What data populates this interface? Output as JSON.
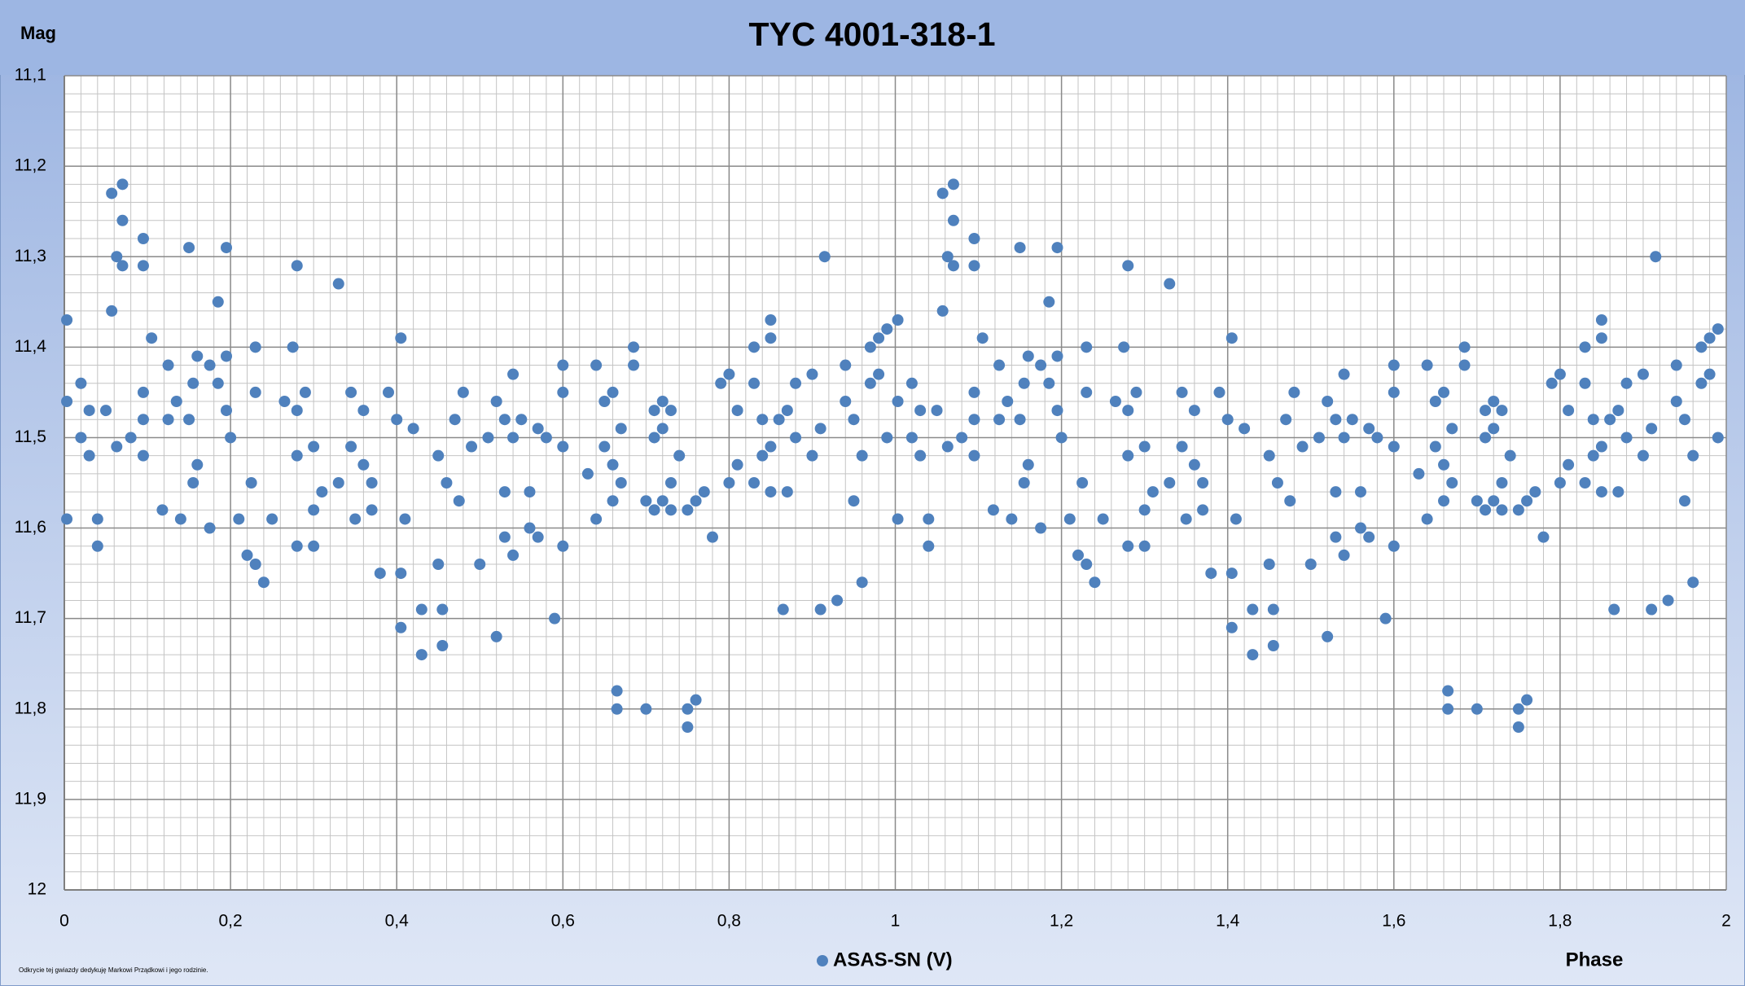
{
  "chart_data": {
    "type": "scatter",
    "title": "TYC 4001-318-1",
    "y_label": "Mag",
    "x_label": "Phase",
    "note": "Odkrycie tej gwiazdy dedykuję Markowi Prządkowi i jego rodzinie.",
    "xlim": [
      0,
      2
    ],
    "ylim": [
      11.1,
      12
    ],
    "y_inverted": true,
    "grid": true,
    "minor_grid": {
      "x": 0.02,
      "y": 0.02
    },
    "xticks": [
      0,
      {
        "value": 0.2,
        "label": "0,2"
      },
      {
        "value": 0.4,
        "label": "0,4"
      },
      {
        "value": 0.6,
        "label": "0,6"
      },
      {
        "value": 0.8,
        "label": "0,8"
      },
      1,
      {
        "value": 1.2,
        "label": "1,2"
      },
      {
        "value": 1.4,
        "label": "1,4"
      },
      {
        "value": 1.6,
        "label": "1,6"
      },
      {
        "value": 1.8,
        "label": "1,8"
      },
      2
    ],
    "yticks": [
      {
        "value": 11.1,
        "label": "11,1"
      },
      {
        "value": 11.2,
        "label": "11,2"
      },
      {
        "value": 11.3,
        "label": "11,3"
      },
      {
        "value": 11.4,
        "label": "11,4"
      },
      {
        "value": 11.5,
        "label": "11,5"
      },
      {
        "value": 11.6,
        "label": "11,6"
      },
      {
        "value": 11.7,
        "label": "11,7"
      },
      {
        "value": 11.8,
        "label": "11,8"
      },
      {
        "value": 11.9,
        "label": "11,9"
      },
      12
    ],
    "legend": "bottom",
    "series": [
      {
        "name": "ASAS-SN (V)",
        "color": "#4f81bd",
        "x": [
          0.003,
          0.003,
          0.003,
          0.02,
          0.02,
          0.03,
          0.03,
          0.04,
          0.04,
          0.05,
          0.057,
          0.057,
          0.063,
          0.063,
          0.07,
          0.07,
          0.07,
          0.08,
          0.095,
          0.095,
          0.095,
          0.095,
          0.095,
          0.105,
          0.118,
          0.125,
          0.125,
          0.135,
          0.14,
          0.15,
          0.15,
          0.155,
          0.155,
          0.16,
          0.16,
          0.175,
          0.175,
          0.185,
          0.185,
          0.195,
          0.195,
          0.195,
          0.2,
          0.21,
          0.22,
          0.225,
          0.23,
          0.23,
          0.23,
          0.24,
          0.25,
          0.265,
          0.275,
          0.28,
          0.28,
          0.28,
          0.28,
          0.29,
          0.3,
          0.3,
          0.3,
          0.31,
          0.33,
          0.33,
          0.345,
          0.345,
          0.35,
          0.36,
          0.36,
          0.37,
          0.37,
          0.38,
          0.39,
          0.4,
          0.405,
          0.405,
          0.405,
          0.41,
          0.42,
          0.43,
          0.43,
          0.45,
          0.45,
          0.455,
          0.455,
          0.46,
          0.47,
          0.475,
          0.48,
          0.49,
          0.5,
          0.51,
          0.52,
          0.52,
          0.53,
          0.53,
          0.53,
          0.54,
          0.54,
          0.54,
          0.55,
          0.56,
          0.56,
          0.57,
          0.57,
          0.58,
          0.59,
          0.6,
          0.6,
          0.6,
          0.6,
          0.63,
          0.64,
          0.64,
          0.65,
          0.65,
          0.66,
          0.66,
          0.66,
          0.665,
          0.665,
          0.67,
          0.67,
          0.685,
          0.685,
          0.7,
          0.7,
          0.71,
          0.71,
          0.71,
          0.72,
          0.72,
          0.72,
          0.73,
          0.73,
          0.73,
          0.74,
          0.75,
          0.75,
          0.75,
          0.76,
          0.76,
          0.77,
          0.78,
          0.79,
          0.8,
          0.8,
          0.81,
          0.81,
          0.83,
          0.83,
          0.83,
          0.84,
          0.84,
          0.85,
          0.85,
          0.85,
          0.85,
          0.86,
          0.865,
          0.87,
          0.87,
          0.88,
          0.88,
          0.9,
          0.9,
          0.91,
          0.91,
          0.915,
          0.93,
          0.94,
          0.94,
          0.95,
          0.95,
          0.96,
          0.96,
          0.97,
          0.97,
          0.98,
          0.98,
          0.99,
          0.99,
          1.003,
          1.003,
          1.003,
          1.02,
          1.02,
          1.03,
          1.03,
          1.04,
          1.04,
          1.05,
          1.057,
          1.057,
          1.063,
          1.063,
          1.07,
          1.07,
          1.07,
          1.08,
          1.095,
          1.095,
          1.095,
          1.095,
          1.095,
          1.105,
          1.118,
          1.125,
          1.125,
          1.135,
          1.14,
          1.15,
          1.15,
          1.155,
          1.155,
          1.16,
          1.16,
          1.175,
          1.175,
          1.185,
          1.185,
          1.195,
          1.195,
          1.195,
          1.2,
          1.21,
          1.22,
          1.225,
          1.23,
          1.23,
          1.23,
          1.24,
          1.25,
          1.265,
          1.275,
          1.28,
          1.28,
          1.28,
          1.28,
          1.29,
          1.3,
          1.3,
          1.3,
          1.31,
          1.33,
          1.33,
          1.345,
          1.345,
          1.35,
          1.36,
          1.36,
          1.37,
          1.37,
          1.38,
          1.39,
          1.4,
          1.405,
          1.405,
          1.405,
          1.41,
          1.42,
          1.43,
          1.43,
          1.45,
          1.45,
          1.455,
          1.455,
          1.46,
          1.47,
          1.475,
          1.48,
          1.49,
          1.5,
          1.51,
          1.52,
          1.52,
          1.53,
          1.53,
          1.53,
          1.54,
          1.54,
          1.54,
          1.55,
          1.56,
          1.56,
          1.57,
          1.57,
          1.58,
          1.59,
          1.6,
          1.6,
          1.6,
          1.6,
          1.63,
          1.64,
          1.64,
          1.65,
          1.65,
          1.66,
          1.66,
          1.66,
          1.665,
          1.665,
          1.67,
          1.67,
          1.685,
          1.685,
          1.7,
          1.7,
          1.71,
          1.71,
          1.71,
          1.72,
          1.72,
          1.72,
          1.73,
          1.73,
          1.73,
          1.74,
          1.75,
          1.75,
          1.75,
          1.76,
          1.76,
          1.77,
          1.78,
          1.79,
          1.8,
          1.8,
          1.81,
          1.81,
          1.83,
          1.83,
          1.83,
          1.84,
          1.84,
          1.85,
          1.85,
          1.85,
          1.85,
          1.86,
          1.865,
          1.87,
          1.87,
          1.88,
          1.88,
          1.9,
          1.9,
          1.91,
          1.91,
          1.915,
          1.93,
          1.94,
          1.94,
          1.95,
          1.95,
          1.96,
          1.96,
          1.97,
          1.97,
          1.98,
          1.98,
          1.99,
          1.99
        ],
        "values": [
          11.37,
          11.46,
          11.59,
          11.44,
          11.5,
          11.52,
          11.47,
          11.59,
          11.62,
          11.47,
          11.23,
          11.36,
          11.3,
          11.51,
          11.22,
          11.26,
          11.31,
          11.5,
          11.28,
          11.31,
          11.45,
          11.48,
          11.52,
          11.39,
          11.58,
          11.42,
          11.48,
          11.46,
          11.59,
          11.29,
          11.48,
          11.44,
          11.55,
          11.41,
          11.53,
          11.42,
          11.6,
          11.35,
          11.44,
          11.29,
          11.41,
          11.47,
          11.5,
          11.59,
          11.63,
          11.55,
          11.4,
          11.45,
          11.64,
          11.66,
          11.59,
          11.46,
          11.4,
          11.31,
          11.47,
          11.52,
          11.62,
          11.45,
          11.51,
          11.58,
          11.62,
          11.56,
          11.33,
          11.55,
          11.45,
          11.51,
          11.59,
          11.47,
          11.53,
          11.55,
          11.58,
          11.65,
          11.45,
          11.48,
          11.39,
          11.65,
          11.71,
          11.59,
          11.49,
          11.69,
          11.74,
          11.52,
          11.64,
          11.69,
          11.73,
          11.55,
          11.48,
          11.57,
          11.45,
          11.51,
          11.64,
          11.5,
          11.72,
          11.46,
          11.48,
          11.56,
          11.61,
          11.43,
          11.5,
          11.63,
          11.48,
          11.56,
          11.6,
          11.49,
          11.61,
          11.5,
          11.7,
          11.42,
          11.45,
          11.51,
          11.62,
          11.54,
          11.42,
          11.59,
          11.46,
          11.51,
          11.45,
          11.53,
          11.57,
          11.78,
          11.8,
          11.49,
          11.55,
          11.4,
          11.42,
          11.57,
          11.8,
          11.47,
          11.5,
          11.58,
          11.46,
          11.49,
          11.57,
          11.47,
          11.55,
          11.58,
          11.52,
          11.58,
          11.8,
          11.82,
          11.57,
          11.79,
          11.56,
          11.61,
          11.44,
          11.43,
          11.55,
          11.47,
          11.53,
          11.4,
          11.44,
          11.55,
          11.48,
          11.52,
          11.37,
          11.39,
          11.51,
          11.56,
          11.48,
          11.69,
          11.47,
          11.56,
          11.44,
          11.5,
          11.43,
          11.52,
          11.49,
          11.69,
          11.3,
          11.68,
          11.42,
          11.46,
          11.48,
          11.57,
          11.52,
          11.66,
          11.4,
          11.44,
          11.39,
          11.43,
          11.38,
          11.5,
          11.37,
          11.46,
          11.59,
          11.44,
          11.5,
          11.52,
          11.47,
          11.59,
          11.62,
          11.47,
          11.23,
          11.36,
          11.3,
          11.51,
          11.22,
          11.26,
          11.31,
          11.5,
          11.28,
          11.31,
          11.45,
          11.48,
          11.52,
          11.39,
          11.58,
          11.42,
          11.48,
          11.46,
          11.59,
          11.29,
          11.48,
          11.44,
          11.55,
          11.41,
          11.53,
          11.42,
          11.6,
          11.35,
          11.44,
          11.29,
          11.41,
          11.47,
          11.5,
          11.59,
          11.63,
          11.55,
          11.4,
          11.45,
          11.64,
          11.66,
          11.59,
          11.46,
          11.4,
          11.31,
          11.47,
          11.52,
          11.62,
          11.45,
          11.51,
          11.58,
          11.62,
          11.56,
          11.33,
          11.55,
          11.45,
          11.51,
          11.59,
          11.47,
          11.53,
          11.55,
          11.58,
          11.65,
          11.45,
          11.48,
          11.39,
          11.65,
          11.71,
          11.59,
          11.49,
          11.69,
          11.74,
          11.52,
          11.64,
          11.69,
          11.73,
          11.55,
          11.48,
          11.57,
          11.45,
          11.51,
          11.64,
          11.5,
          11.72,
          11.46,
          11.48,
          11.56,
          11.61,
          11.43,
          11.5,
          11.63,
          11.48,
          11.56,
          11.6,
          11.49,
          11.61,
          11.5,
          11.7,
          11.42,
          11.45,
          11.51,
          11.62,
          11.54,
          11.42,
          11.59,
          11.46,
          11.51,
          11.45,
          11.53,
          11.57,
          11.78,
          11.8,
          11.49,
          11.55,
          11.4,
          11.42,
          11.57,
          11.8,
          11.47,
          11.5,
          11.58,
          11.46,
          11.49,
          11.57,
          11.47,
          11.55,
          11.58,
          11.52,
          11.58,
          11.8,
          11.82,
          11.57,
          11.79,
          11.56,
          11.61,
          11.44,
          11.43,
          11.55,
          11.47,
          11.53,
          11.4,
          11.44,
          11.55,
          11.48,
          11.52,
          11.37,
          11.39,
          11.51,
          11.56,
          11.48,
          11.69,
          11.47,
          11.56,
          11.44,
          11.5,
          11.43,
          11.52,
          11.49,
          11.69,
          11.3,
          11.68,
          11.42,
          11.46,
          11.48,
          11.57,
          11.52,
          11.66,
          11.4,
          11.44,
          11.39,
          11.43,
          11.38,
          11.5
        ]
      }
    ]
  }
}
